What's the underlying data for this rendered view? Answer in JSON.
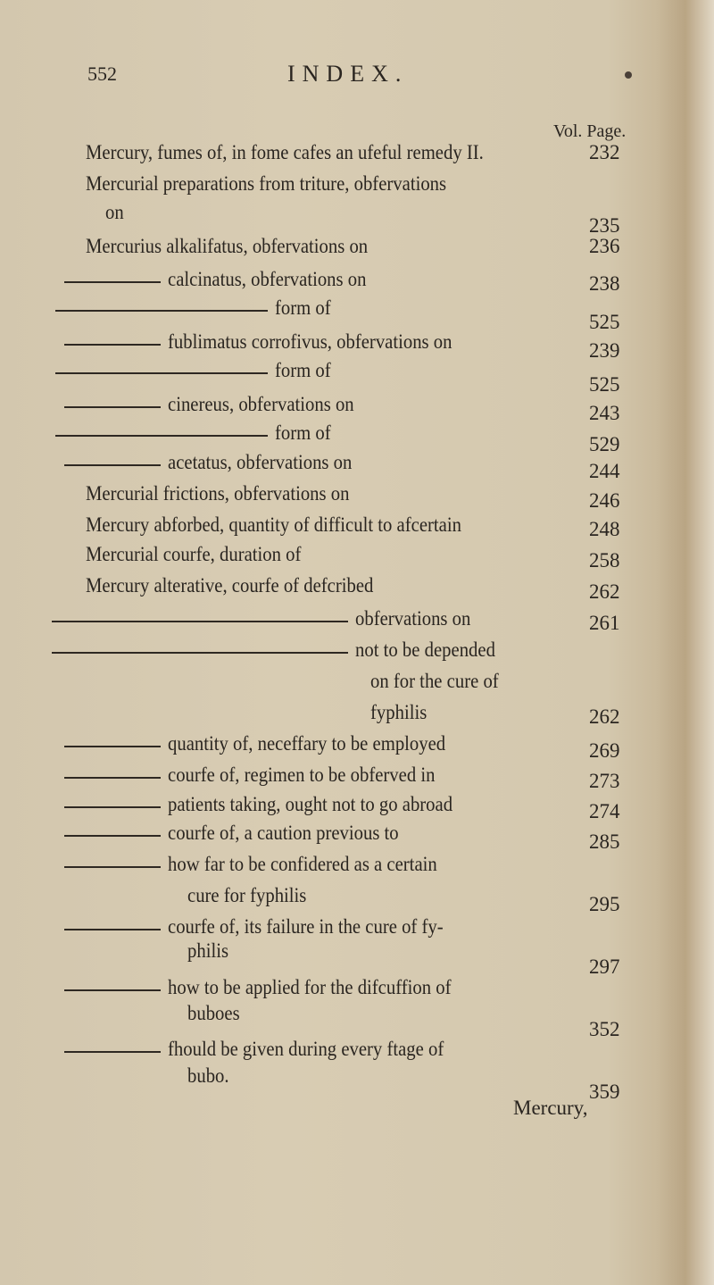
{
  "header": {
    "page_number": "552",
    "title": "INDEX.",
    "column_heads": "Vol. Page."
  },
  "entries": [
    {
      "lines": [
        "Mercury, fumes of, in fome cafes an ufeful remedy II."
      ],
      "page": "232",
      "dash": "none"
    },
    {
      "lines": [
        "Mercurial preparations from triture, obfervations",
        "on"
      ],
      "page": "235",
      "dash": "none"
    },
    {
      "lines": [
        "Mercurius alkalifatus, obfervations on"
      ],
      "page": "236",
      "dash": "none"
    },
    {
      "lines": [
        "calcinatus, obfervations on"
      ],
      "page": "238",
      "dash": "short"
    },
    {
      "lines": [
        "form of"
      ],
      "page": "525",
      "dash": "long"
    },
    {
      "lines": [
        "fublimatus corrofivus, obfervations on"
      ],
      "page": "239",
      "dash": "short"
    },
    {
      "lines": [
        "form of"
      ],
      "page": "525",
      "dash": "long"
    },
    {
      "lines": [
        "cinereus, obfervations on"
      ],
      "page": "243",
      "dash": "short"
    },
    {
      "lines": [
        "form of"
      ],
      "page": "529",
      "dash": "long"
    },
    {
      "lines": [
        "acetatus, obfervations on"
      ],
      "page": "244",
      "dash": "short"
    },
    {
      "lines": [
        "Mercurial frictions, obfervations on"
      ],
      "page": "246",
      "dash": "none"
    },
    {
      "lines": [
        "Mercury abforbed, quantity of difficult to afcertain"
      ],
      "page": "248",
      "dash": "none"
    },
    {
      "lines": [
        "Mercurial courfe, duration of"
      ],
      "page": "258",
      "dash": "none"
    },
    {
      "lines": [
        "Mercury alterative, courfe of defcribed"
      ],
      "page": "262",
      "dash": "none"
    },
    {
      "lines": [
        "obfervations on"
      ],
      "page": "261",
      "dash": "xlong"
    },
    {
      "lines": [
        "not to be depended",
        "on for the cure of",
        "fyphilis"
      ],
      "page": "262",
      "dash": "xlong"
    },
    {
      "lines": [
        "quantity of, neceffary to be employed"
      ],
      "page": "269",
      "dash": "short"
    },
    {
      "lines": [
        "courfe of, regimen to be obferved in"
      ],
      "page": "273",
      "dash": "short"
    },
    {
      "lines": [
        "patients taking, ought not to go abroad"
      ],
      "page": "274",
      "dash": "short"
    },
    {
      "lines": [
        "courfe of, a caution previous to"
      ],
      "page": "285",
      "dash": "short"
    },
    {
      "lines": [
        "how far to be confidered as a certain",
        "cure for fyphilis"
      ],
      "page": "295",
      "dash": "short"
    },
    {
      "lines": [
        "courfe of, its failure in the cure of fy-",
        "philis"
      ],
      "page": "297",
      "dash": "short"
    },
    {
      "lines": [
        "how to be applied for the difcuffion of",
        "buboes"
      ],
      "page": "352",
      "dash": "short"
    },
    {
      "lines": [
        "fhould be given during every ftage of",
        "bubo."
      ],
      "page": "359",
      "dash": "short"
    }
  ],
  "catchword": "Mercury,"
}
